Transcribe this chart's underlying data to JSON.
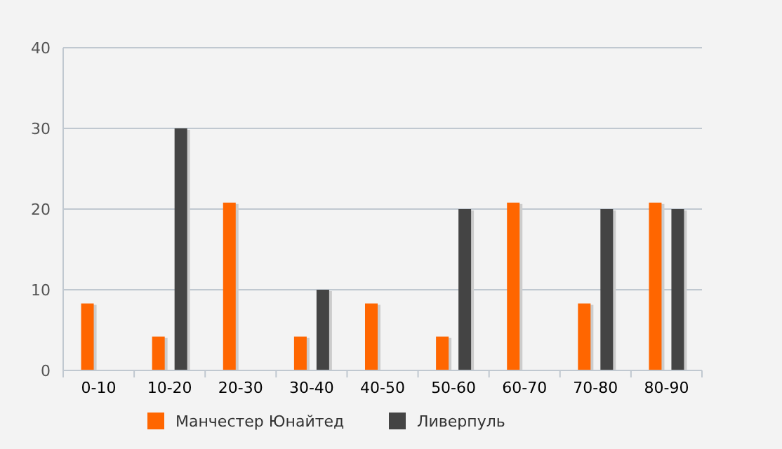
{
  "chart_data": {
    "type": "bar",
    "categories": [
      "0-10",
      "10-20",
      "20-30",
      "30-40",
      "40-50",
      "50-60",
      "60-70",
      "70-80",
      "80-90"
    ],
    "series": [
      {
        "name": "Манчестер Юнайтед",
        "color": "#ff6600",
        "values": [
          8.3,
          4.2,
          20.8,
          4.2,
          8.3,
          4.2,
          20.8,
          8.3,
          20.8
        ]
      },
      {
        "name": "Ливерпуль",
        "color": "#444444",
        "values": [
          0,
          30,
          0,
          10,
          0,
          20,
          0,
          20,
          20
        ]
      }
    ],
    "ylim": [
      0,
      40
    ],
    "yticks": [
      0,
      10,
      20,
      30,
      40
    ],
    "grid": "y",
    "legend": "bottom"
  }
}
